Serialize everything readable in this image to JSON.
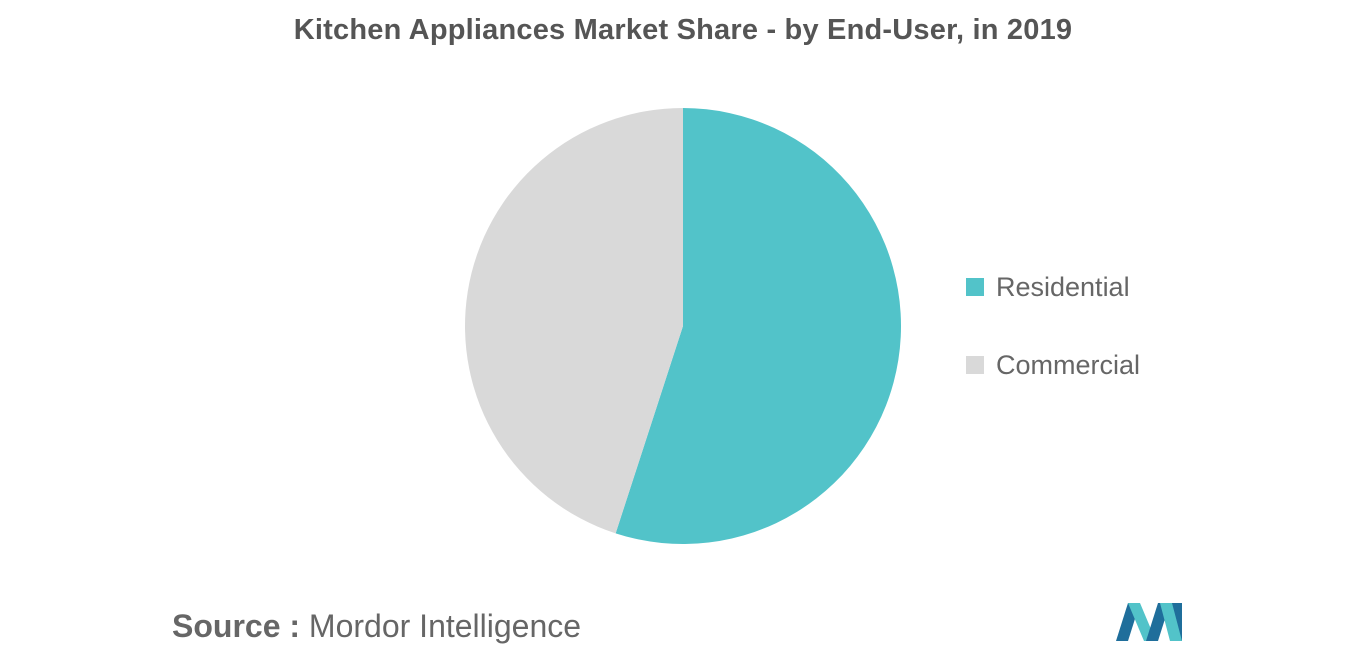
{
  "chart_data": {
    "type": "pie",
    "title": "Kitchen Appliances Market Share - by End-User, in 2019",
    "slices": [
      {
        "label": "Residential",
        "value": 55,
        "color": "#52c3c9"
      },
      {
        "label": "Commercial",
        "value": 45,
        "color": "#d9d9d9"
      }
    ],
    "legend_position": "right"
  },
  "source": {
    "label": "Source :",
    "text": "Mordor Intelligence"
  },
  "logo": {
    "icon": "mordor-intelligence-logo",
    "colors": [
      "#1f6e9b",
      "#52c3c9"
    ]
  }
}
